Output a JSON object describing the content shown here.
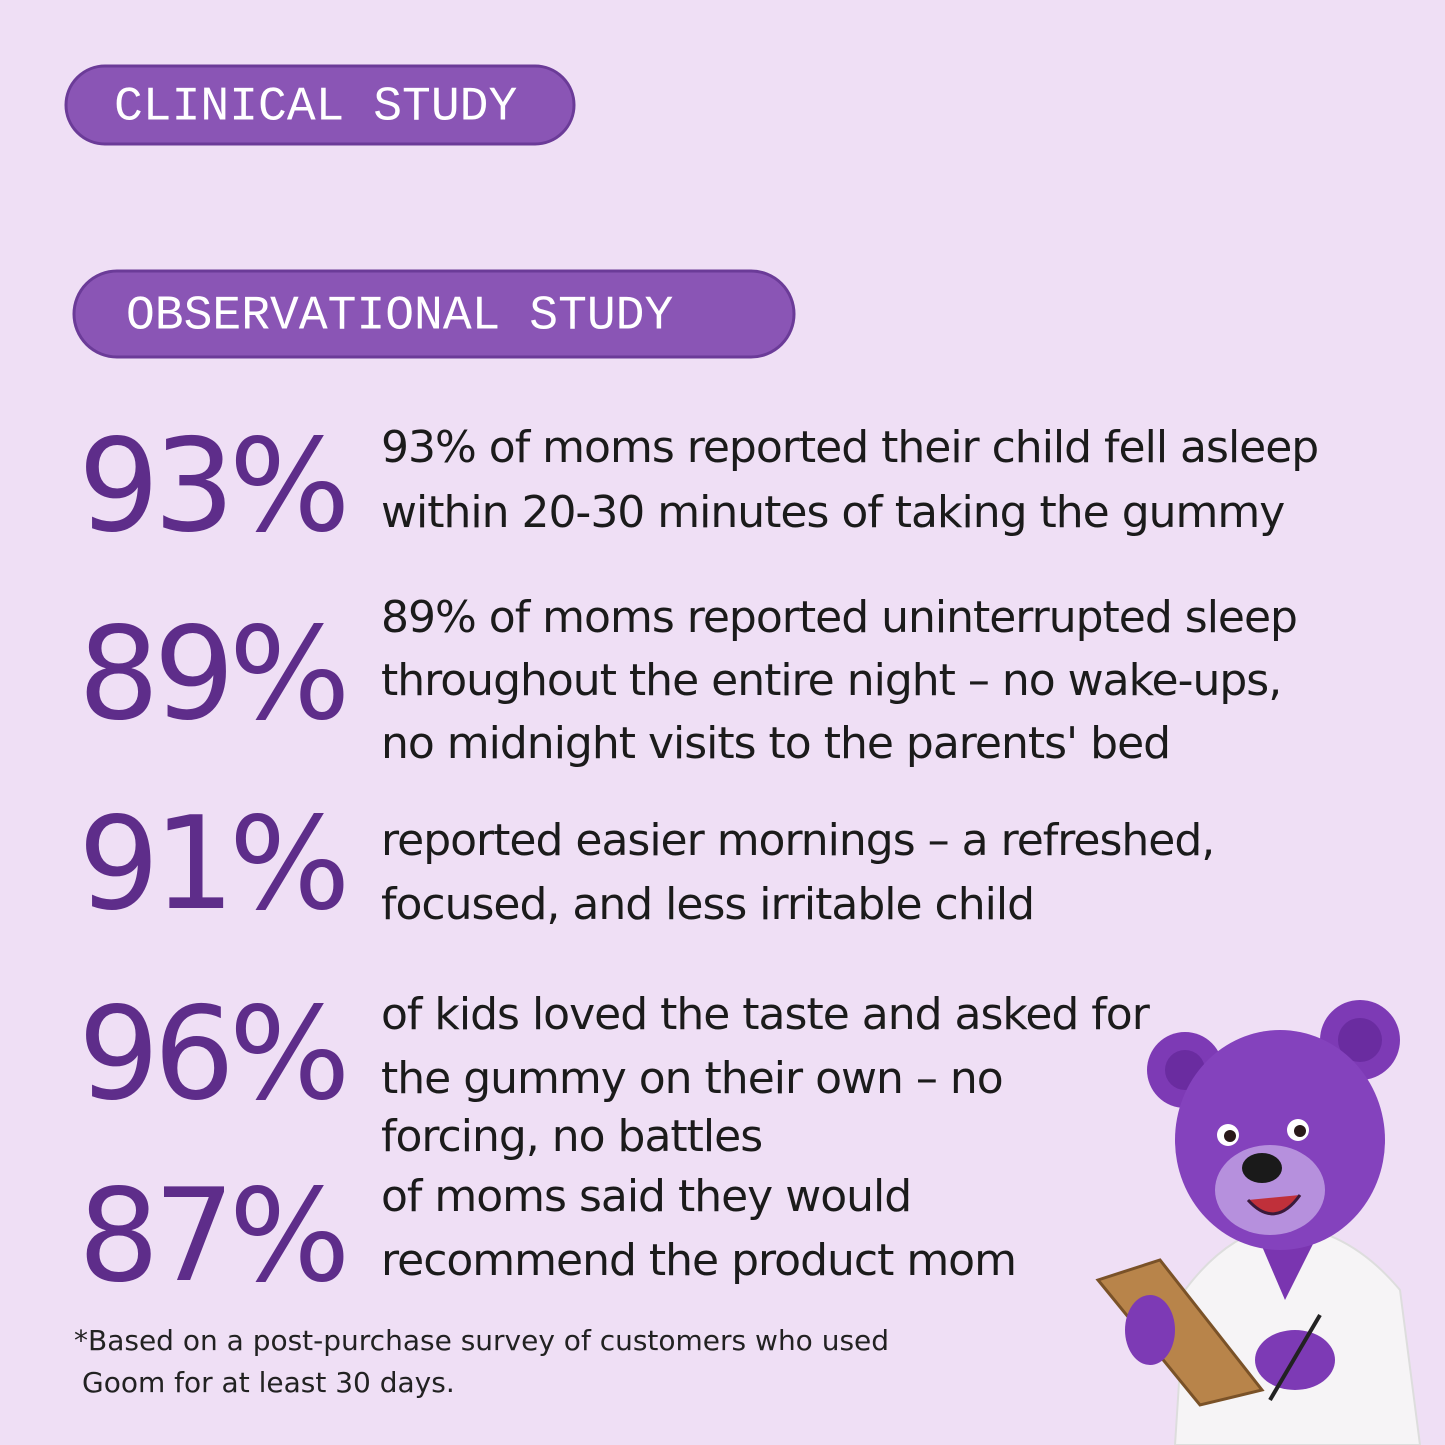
{
  "badges": [
    "CLINICAL STUDY",
    "OBSERVATIONAL STUDY"
  ],
  "stats": [
    {
      "value": "93%",
      "lines": [
        "93% of moms reported their child fell asleep",
        "within 20-30 minutes of taking the gummy"
      ]
    },
    {
      "value": "89%",
      "lines": [
        "89% of moms reported uninterrupted sleep",
        "throughout the entire night – no wake-ups,",
        "no midnight visits to the parents' bed"
      ]
    },
    {
      "value": "91%",
      "lines": [
        "reported easier mornings – a refreshed,",
        "focused, and less irritable child"
      ]
    },
    {
      "value": "96%",
      "lines": [
        "of kids loved the taste and asked for",
        "the gummy on their own – no",
        "forcing, no battles"
      ]
    },
    {
      "value": "87%",
      "lines": [
        "of moms said they would",
        "recommend the product mom"
      ]
    }
  ],
  "footnote": [
    "*Based on a post-purchase survey of customers who used",
    "Goom for at least 30 days."
  ]
}
